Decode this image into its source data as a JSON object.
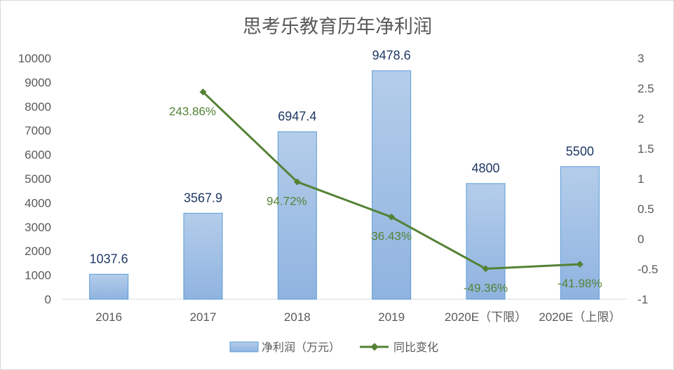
{
  "chart_data": {
    "type": "bar",
    "title": "思考乐教育历年净利润",
    "categories": [
      "2016",
      "2017",
      "2018",
      "2019",
      "2020E（下限）",
      "2020E（上限）"
    ],
    "series": [
      {
        "name": "净利润（万元）",
        "type": "bar",
        "axis": "left",
        "values": [
          1037.6,
          3567.9,
          6947.4,
          9478.6,
          4800,
          5500
        ],
        "labels": [
          "1037.6",
          "3567.9",
          "6947.4",
          "9478.6",
          "4800",
          "5500"
        ],
        "color": "#9dc3e6"
      },
      {
        "name": "同比变化",
        "type": "line",
        "axis": "right",
        "values": [
          null,
          2.4386,
          0.9472,
          0.3643,
          -0.4936,
          -0.4198
        ],
        "labels": [
          "",
          "243.86%",
          "94.72%",
          "36.43%",
          "-49.36%",
          "-41.98%"
        ],
        "color": "#548235"
      }
    ],
    "y_left": {
      "min": 0,
      "max": 10000,
      "ticks": [
        "0",
        "1000",
        "2000",
        "3000",
        "4000",
        "5000",
        "6000",
        "7000",
        "8000",
        "9000",
        "10000"
      ]
    },
    "y_right": {
      "min": -1,
      "max": 3,
      "ticks": [
        "-1",
        "-0.5",
        "0",
        "0.5",
        "1",
        "1.5",
        "2",
        "2.5",
        "3"
      ]
    },
    "grid": false,
    "legend": "bottom"
  }
}
